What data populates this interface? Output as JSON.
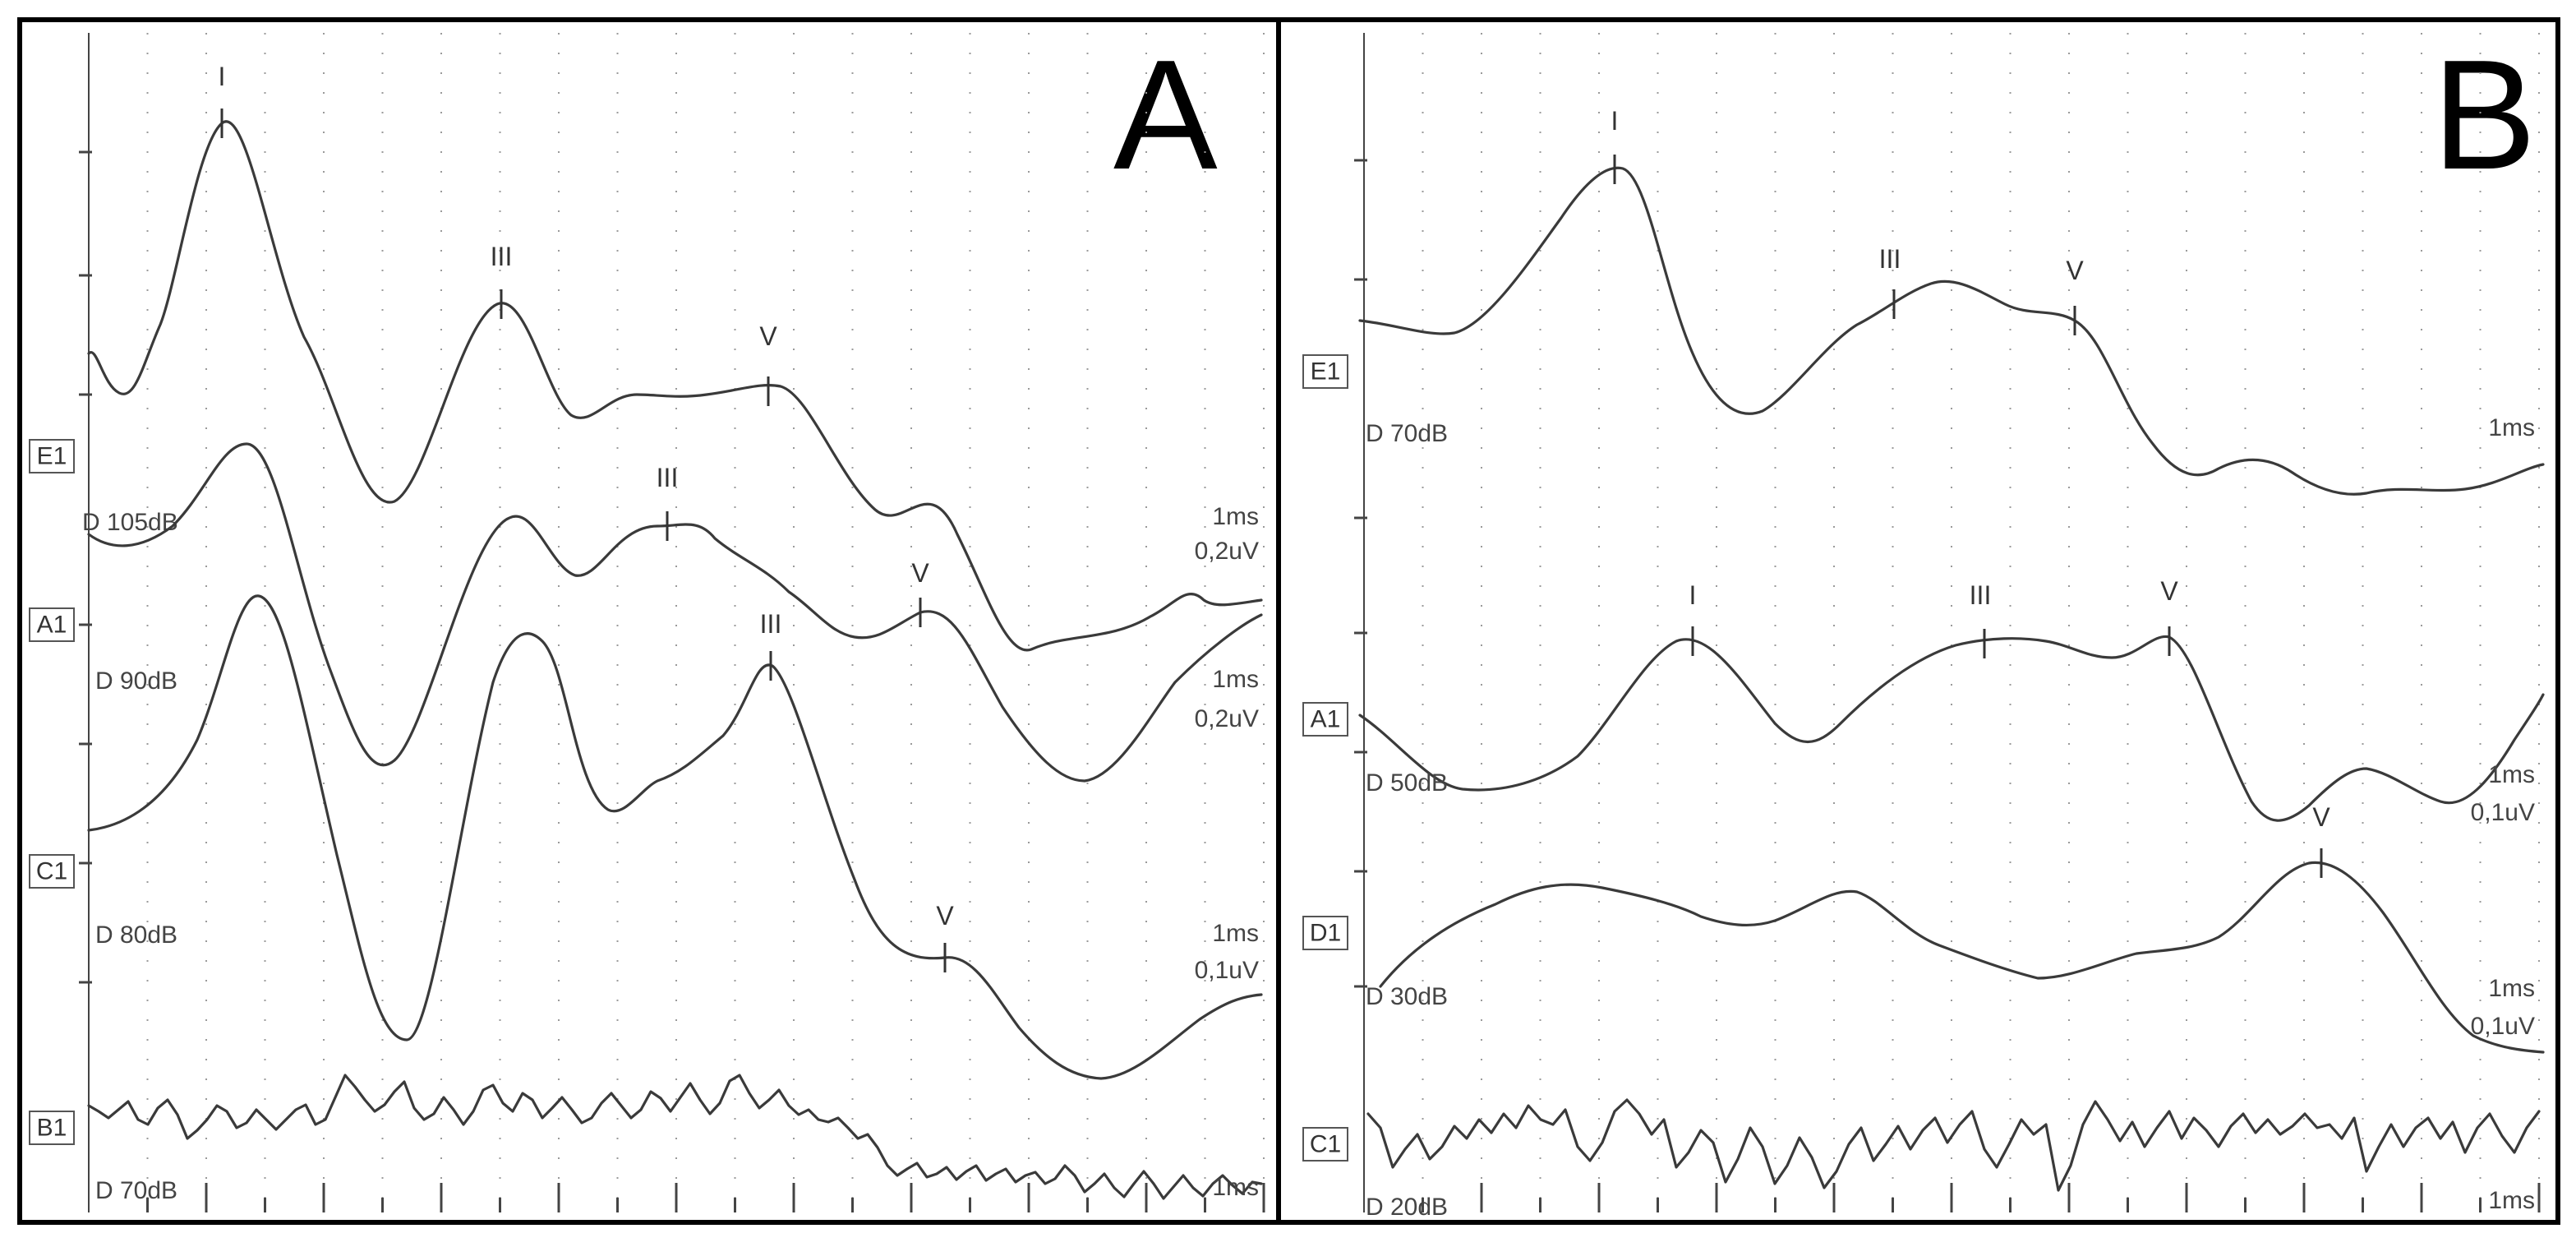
{
  "chart_data": [
    {
      "type": "line",
      "panel": "A",
      "traces": [
        {
          "channel": "E1",
          "stimulus": "D 105dB",
          "time_scale": "1ms",
          "amp_scale": "0,2uV",
          "peaks": [
            "I",
            "III",
            "V"
          ]
        },
        {
          "channel": "A1",
          "stimulus": "D 90dB",
          "time_scale": "1ms",
          "amp_scale": "0,2uV",
          "peaks": [
            "III",
            "V"
          ]
        },
        {
          "channel": "C1",
          "stimulus": "D 80dB",
          "time_scale": "1ms",
          "amp_scale": "0,1uV",
          "peaks": [
            "III",
            "V"
          ]
        },
        {
          "channel": "B1",
          "stimulus": "D 70dB",
          "time_scale": "1ms",
          "amp_scale": "",
          "peaks": []
        }
      ]
    },
    {
      "type": "line",
      "panel": "B",
      "traces": [
        {
          "channel": "E1",
          "stimulus": "D 70dB",
          "time_scale": "1ms",
          "amp_scale": "",
          "peaks": [
            "I",
            "III",
            "V"
          ]
        },
        {
          "channel": "A1",
          "stimulus": "D 50dB",
          "time_scale": "1ms",
          "amp_scale": "0,1uV",
          "peaks": [
            "I",
            "III",
            "V"
          ]
        },
        {
          "channel": "D1",
          "stimulus": "D 30dB",
          "time_scale": "1ms",
          "amp_scale": "0,1uV",
          "peaks": [
            "V"
          ]
        },
        {
          "channel": "C1",
          "stimulus": "D 20dB",
          "time_scale": "1ms",
          "amp_scale": "",
          "peaks": []
        }
      ]
    }
  ]
}
